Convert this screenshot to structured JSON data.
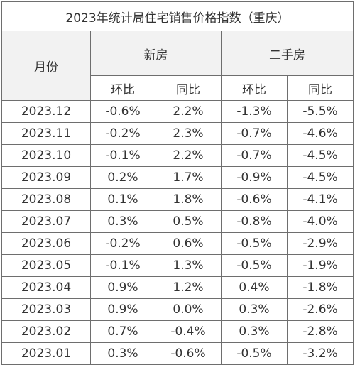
{
  "title": "2023年统计局住宅销售价格指数（重庆）",
  "headers": {
    "month": "月份",
    "new_home": "新房",
    "second_hand": "二手房",
    "mom": "环比",
    "yoy": "同比"
  },
  "rows": [
    {
      "month": "2023.12",
      "new_mom": "-0.6%",
      "new_yoy": "2.2%",
      "sec_mom": "-1.3%",
      "sec_yoy": "-5.5%"
    },
    {
      "month": "2023.11",
      "new_mom": "-0.2%",
      "new_yoy": "2.3%",
      "sec_mom": "-0.7%",
      "sec_yoy": "-4.6%"
    },
    {
      "month": "2023.10",
      "new_mom": "-0.1%",
      "new_yoy": "2.2%",
      "sec_mom": "-0.7%",
      "sec_yoy": "-4.5%"
    },
    {
      "month": "2023.09",
      "new_mom": "0.2%",
      "new_yoy": "1.7%",
      "sec_mom": "-0.9%",
      "sec_yoy": "-4.5%"
    },
    {
      "month": "2023.08",
      "new_mom": "0.1%",
      "new_yoy": "1.8%",
      "sec_mom": "-0.6%",
      "sec_yoy": "-4.1%"
    },
    {
      "month": "2023.07",
      "new_mom": "0.3%",
      "new_yoy": "0.5%",
      "sec_mom": "-0.8%",
      "sec_yoy": "-4.0%"
    },
    {
      "month": "2023.06",
      "new_mom": "-0.2%",
      "new_yoy": "0.6%",
      "sec_mom": "-0.5%",
      "sec_yoy": "-2.9%"
    },
    {
      "month": "2023.05",
      "new_mom": "-0.1%",
      "new_yoy": "1.3%",
      "sec_mom": "-0.5%",
      "sec_yoy": "-1.9%"
    },
    {
      "month": "2023.04",
      "new_mom": "0.9%",
      "new_yoy": "1.2%",
      "sec_mom": "0.4%",
      "sec_yoy": "-1.8%"
    },
    {
      "month": "2023.03",
      "new_mom": "0.9%",
      "new_yoy": "0.0%",
      "sec_mom": "0.3%",
      "sec_yoy": "-2.6%"
    },
    {
      "month": "2023.02",
      "new_mom": "0.7%",
      "new_yoy": "-0.4%",
      "sec_mom": "0.3%",
      "sec_yoy": "-2.8%"
    },
    {
      "month": "2023.01",
      "new_mom": "0.3%",
      "new_yoy": "-0.6%",
      "sec_mom": "-0.5%",
      "sec_yoy": "-3.2%"
    }
  ],
  "colors": {
    "rise": "#c00000",
    "fall": "#444444",
    "header_bg": "#f2f2f2",
    "border": "#6e6e6e"
  }
}
